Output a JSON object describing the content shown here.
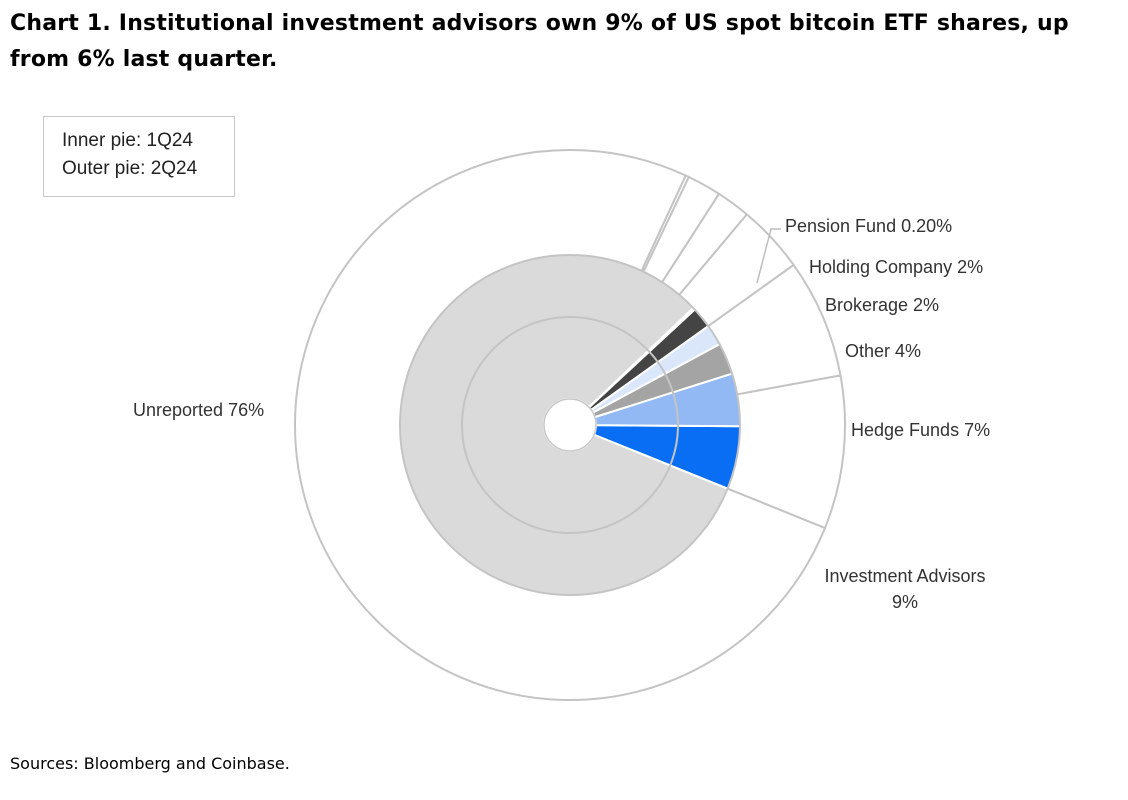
{
  "title": "Chart 1. Institutional investment advisors own 9% of US spot bitcoin ETF shares, up from 6% last quarter.",
  "legend": {
    "inner": "Inner pie: 1Q24",
    "outer": "Outer pie: 2Q24"
  },
  "source": "Sources: Bloomberg and Coinbase.",
  "chart_data": {
    "type": "pie",
    "title": "Chart 1. Institutional investment advisors own 9% of US spot bitcoin ETF shares, up from 6% last quarter.",
    "categories": [
      "Investment Advisors",
      "Hedge Funds",
      "Other",
      "Brokerage",
      "Holding Company",
      "Pension Fund",
      "Unreported"
    ],
    "series": [
      {
        "name": "Outer pie: 2Q24",
        "values": [
          9,
          7,
          4,
          2,
          2,
          0.2,
          75.8
        ],
        "labels": [
          "Investment Advisors 9%",
          "Hedge Funds 7%",
          "Other 4%",
          "Brokerage 2%",
          "Holding Company 2%",
          "Pension Fund 0.20%",
          "Unreported 76%"
        ]
      },
      {
        "name": "Inner pie: 1Q24",
        "values": [
          6,
          5,
          3,
          2,
          2,
          0.2,
          81.8
        ]
      }
    ],
    "colors": [
      "#0a6ef5",
      "#93b9f4",
      "#a4a4a4",
      "#dae6f9",
      "#444444",
      "#b8b8b8",
      "#dadada"
    ],
    "legend_position": "top-left"
  }
}
